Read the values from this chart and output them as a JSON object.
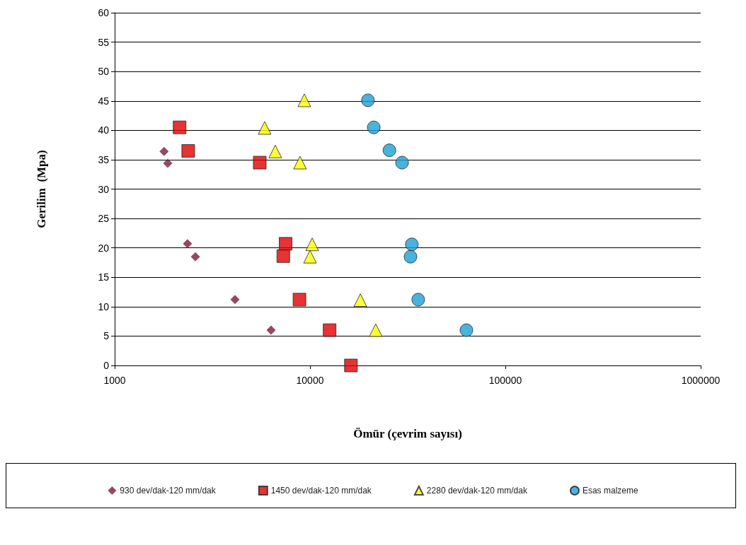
{
  "chart_data": {
    "type": "scatter",
    "xlabel": "Ömür (çevrim sayısı)",
    "ylabel": "Gerilim  (Mpa)",
    "log": "x",
    "grid": "y",
    "legend": "bottom",
    "xlim": [
      1000,
      1000000
    ],
    "xticks": [
      1000,
      10000,
      100000,
      1000000
    ],
    "ylim": [
      0,
      60
    ],
    "yticks": [
      0,
      5,
      10,
      15,
      20,
      25,
      30,
      35,
      40,
      45,
      50,
      55,
      60
    ],
    "series": [
      {
        "name": "930 dev/dak-120 mm/dak",
        "color": "#7a1c3c",
        "marker": "diamond",
        "x": [
          1790,
          1870,
          2360,
          2590,
          4130,
          6320
        ],
        "values": [
          36.4,
          34.4,
          20.7,
          18.5,
          11.2,
          6.0
        ]
      },
      {
        "name": "1450 dev/dak-120 mm/dak",
        "color": "#e00000",
        "marker": "square",
        "x": [
          2150,
          2380,
          5530,
          7500,
          7300,
          8830,
          12600,
          16200
        ],
        "values": [
          40.5,
          36.5,
          34.5,
          20.7,
          18.6,
          11.2,
          6.0,
          0
        ]
      },
      {
        "name": "2280 dev/dak-120 mm/dak",
        "color": "#ffff00",
        "marker": "triangle",
        "x": [
          9350,
          5860,
          6640,
          8890,
          10260,
          10000,
          18100,
          21700
        ],
        "values": [
          45.1,
          40.4,
          36.4,
          34.5,
          20.6,
          18.5,
          11.1,
          6.0
        ]
      },
      {
        "name": "Esas malzeme",
        "color": "#1aa0d4",
        "marker": "circle",
        "x": [
          19800,
          21200,
          25500,
          29600,
          33200,
          32700,
          35800,
          63200
        ],
        "values": [
          45.1,
          40.5,
          36.6,
          34.5,
          20.6,
          18.5,
          11.2,
          6.0
        ]
      }
    ]
  }
}
